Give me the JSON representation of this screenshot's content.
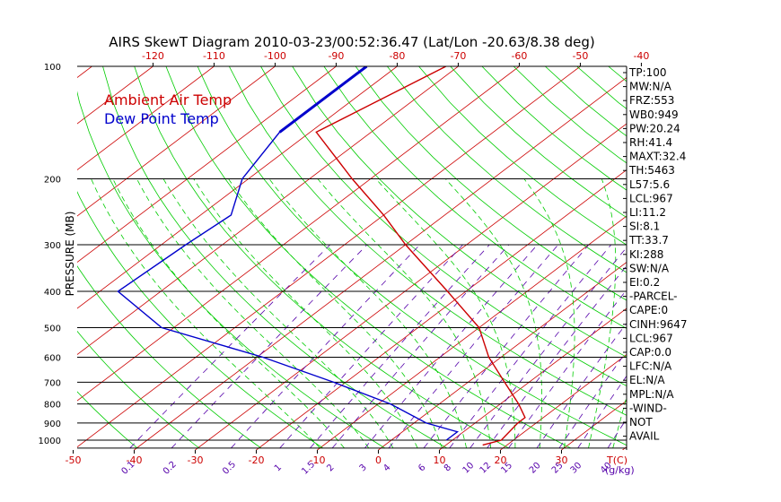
{
  "chart_data": {
    "type": "line",
    "title": "AIRS SkewT Diagram 2010-03-23/00:52:36.47 (Lat/Lon -20.63/8.38 deg)",
    "ylabel": "PRESSURE (MB)",
    "y_scale": "log",
    "ylim": [
      1050,
      100
    ],
    "pressure_ticks": [
      100,
      200,
      300,
      400,
      500,
      600,
      700,
      800,
      900,
      1000
    ],
    "isobar_lines": [
      200,
      300,
      400,
      500,
      600,
      700,
      800,
      900,
      1000,
      1050
    ],
    "top_temp_ticks": [
      -120,
      -110,
      -100,
      -90,
      -80,
      -70,
      -60,
      -50,
      -40
    ],
    "bottom_temp_ticks": [
      -50,
      -40,
      -30,
      -20,
      -10,
      0,
      10,
      20,
      30
    ],
    "bottom_temp_unit_label": "T(C)",
    "mixing_ratio_ticks": [
      "0.1",
      "0.2",
      "0.5",
      "1",
      "1.5",
      "2",
      "3",
      "4",
      "6",
      "8",
      "10",
      "12",
      "15",
      "20",
      "25",
      "30",
      "40"
    ],
    "mixing_ratio_unit_label": "(g/kg)",
    "grid": true,
    "legend_position": "top-left",
    "series": [
      {
        "name": "Ambient Air Temp",
        "color": "#cc0000",
        "points": [
          [
            100,
            -72
          ],
          [
            150,
            -79
          ],
          [
            200,
            -63
          ],
          [
            250,
            -50
          ],
          [
            300,
            -40
          ],
          [
            400,
            -23
          ],
          [
            500,
            -10
          ],
          [
            600,
            -2
          ],
          [
            700,
            6
          ],
          [
            800,
            13
          ],
          [
            870,
            17
          ],
          [
            900,
            17
          ],
          [
            1000,
            18
          ],
          [
            1030,
            16
          ]
        ]
      },
      {
        "name": "Dew Point Temp",
        "color": "#0000cc",
        "points": [
          [
            100,
            -85
          ],
          [
            150,
            -85
          ],
          [
            200,
            -81
          ],
          [
            250,
            -75
          ],
          [
            300,
            -76
          ],
          [
            400,
            -77
          ],
          [
            500,
            -62
          ],
          [
            600,
            -39
          ],
          [
            700,
            -22
          ],
          [
            800,
            -8
          ],
          [
            900,
            2
          ],
          [
            950,
            9
          ],
          [
            1000,
            9
          ]
        ]
      }
    ],
    "indices": [
      "TP:100",
      "MW:N/A",
      "FRZ:553",
      "WB0:949",
      "PW:20.24",
      "RH:41.4",
      "MAXT:32.4",
      "TH:5463",
      "L57:5.6",
      "LCL:967",
      "LI:11.2",
      "SI:8.1",
      "TT:33.7",
      "KI:288",
      "SW:N/A",
      "EI:0.2",
      "-PARCEL-",
      "CAPE:0",
      "CINH:9647",
      "LCL:967",
      "CAP:0.0",
      "LFC:N/A",
      "EL:N/A",
      "MPL:N/A",
      "-WIND-",
      "NOT",
      "AVAIL"
    ]
  },
  "colors": {
    "isotherm": "#cc0000",
    "dry_adiabat": "#00cc00",
    "moist_adiabat": "#00cc00",
    "mixing_ratio": "#5500aa",
    "isobar": "#000000",
    "text": "#000000",
    "axis_red": "#cc0000",
    "mixing_label": "#5500aa"
  }
}
